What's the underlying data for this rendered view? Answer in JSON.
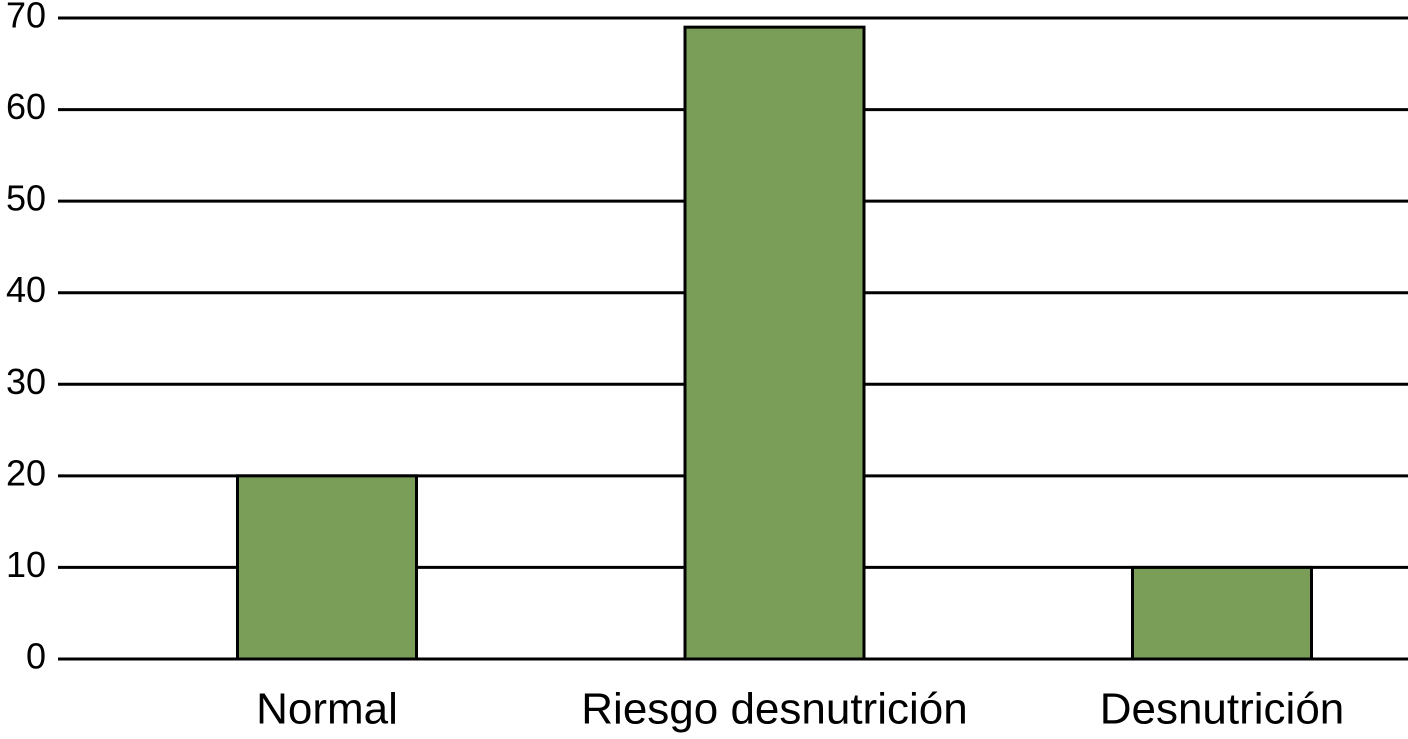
{
  "chart_data": {
    "type": "bar",
    "categories": [
      "Normal",
      "Riesgo desnutrición",
      "Desnutrición"
    ],
    "values": [
      20,
      69,
      10
    ],
    "color": "#7a9e58",
    "ylim": [
      0,
      70
    ],
    "yticks": [
      0,
      10,
      20,
      30,
      40,
      50,
      60,
      70
    ],
    "grid": true
  }
}
